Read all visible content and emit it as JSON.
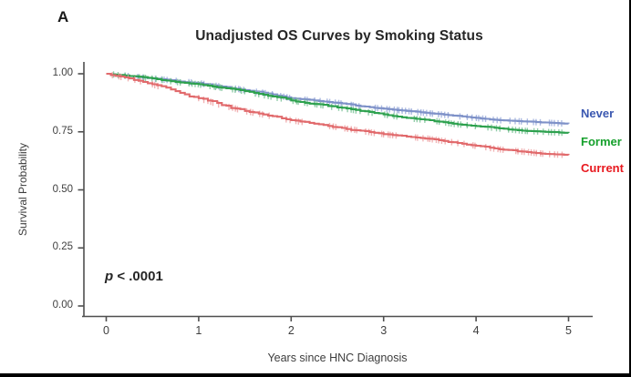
{
  "panel_label": "A",
  "title": "Unadjusted OS Curves by Smoking Status",
  "p_value": {
    "symbol": "p",
    "rest": " < .0001"
  },
  "x_axis": {
    "label": "Years since HNC Diagnosis",
    "ticks": [
      "0",
      "1",
      "2",
      "3",
      "4",
      "5"
    ],
    "tick_values": [
      0,
      1,
      2,
      3,
      4,
      5
    ]
  },
  "y_axis": {
    "label": "Survival Probability",
    "ticks": [
      "1.00",
      "0.75",
      "0.50",
      "0.25",
      "0.00"
    ],
    "tick_values": [
      1.0,
      0.75,
      0.5,
      0.25,
      0.0
    ]
  },
  "legend": [
    {
      "label": "Never",
      "color": "#3a57b0"
    },
    {
      "label": "Former",
      "color": "#16a02c"
    },
    {
      "label": "Current",
      "color": "#e8191f"
    }
  ],
  "chart_data": {
    "type": "line",
    "subtype": "kaplan-meier-step",
    "title": "Unadjusted OS Curves by Smoking Status",
    "xlabel": "Years since HNC Diagnosis",
    "ylabel": "Survival Probability",
    "xlim": [
      0,
      5
    ],
    "ylim": [
      0.0,
      1.0
    ],
    "grid": false,
    "legend_position": "right",
    "annotation": "p < .0001",
    "x": [
      0,
      0.25,
      0.5,
      0.75,
      1,
      1.25,
      1.5,
      1.75,
      2,
      2.25,
      2.5,
      2.75,
      3,
      3.25,
      3.5,
      3.75,
      4,
      4.25,
      4.5,
      4.75,
      5
    ],
    "series": [
      {
        "name": "Never",
        "color": "#7e91c8",
        "censor_color": "#9fb0dd",
        "values": [
          1.0,
          0.99,
          0.98,
          0.97,
          0.96,
          0.945,
          0.93,
          0.915,
          0.895,
          0.885,
          0.875,
          0.86,
          0.85,
          0.84,
          0.83,
          0.82,
          0.81,
          0.8,
          0.795,
          0.79,
          0.785
        ]
      },
      {
        "name": "Former",
        "color": "#2da14e",
        "censor_color": "#7fc59b",
        "values": [
          1.0,
          0.99,
          0.98,
          0.965,
          0.955,
          0.94,
          0.925,
          0.905,
          0.885,
          0.87,
          0.855,
          0.84,
          0.825,
          0.81,
          0.8,
          0.785,
          0.775,
          0.765,
          0.755,
          0.75,
          0.745
        ]
      },
      {
        "name": "Current",
        "color": "#e16a6c",
        "censor_color": "#efa6a8",
        "values": [
          1.0,
          0.98,
          0.955,
          0.925,
          0.895,
          0.865,
          0.84,
          0.82,
          0.8,
          0.785,
          0.77,
          0.755,
          0.74,
          0.73,
          0.72,
          0.705,
          0.69,
          0.675,
          0.665,
          0.655,
          0.65
        ]
      }
    ]
  }
}
